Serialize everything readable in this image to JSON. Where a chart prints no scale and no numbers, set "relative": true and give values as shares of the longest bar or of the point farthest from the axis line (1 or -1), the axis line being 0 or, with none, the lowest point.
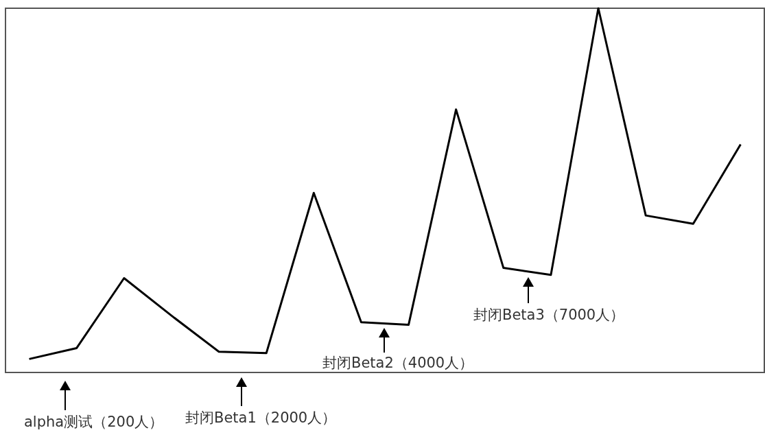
{
  "chart_data": {
    "type": "line",
    "relative": true,
    "categories": [
      null,
      null,
      null,
      null,
      null,
      null,
      null,
      null,
      null,
      null,
      null,
      null,
      null,
      null,
      null,
      null
    ],
    "series": [
      {
        "color": "#000000",
        "values": [
          0.037,
          0.067,
          0.259,
          0.156,
          0.057,
          0.053,
          0.493,
          0.138,
          0.131,
          0.722,
          0.287,
          0.268,
          1,
          0.431,
          0.408,
          0.626
        ]
      }
    ],
    "annotations": [
      "alpha测试（200人）",
      "封闭Beta1（2000人）",
      "封闭Beta2（4000人）",
      "封闭Beta3（7000人）"
    ],
    "marker": "none",
    "line_style": "solid"
  }
}
